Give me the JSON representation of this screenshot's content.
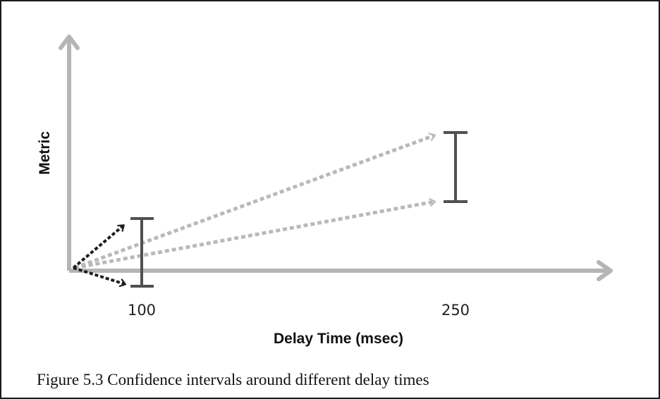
{
  "figure": {
    "y_axis_label": "Metric",
    "x_axis_label": "Delay Time (msec)",
    "tick_labels": [
      "100",
      "250"
    ],
    "caption": "Figure 5.3  Confidence intervals around different delay times"
  },
  "colors": {
    "axis": "#b5b5b5",
    "short_delay_arrows": "#1e1e1e",
    "long_delay_arrows": "#b9b9b9",
    "interval_bars": "#505050"
  }
}
